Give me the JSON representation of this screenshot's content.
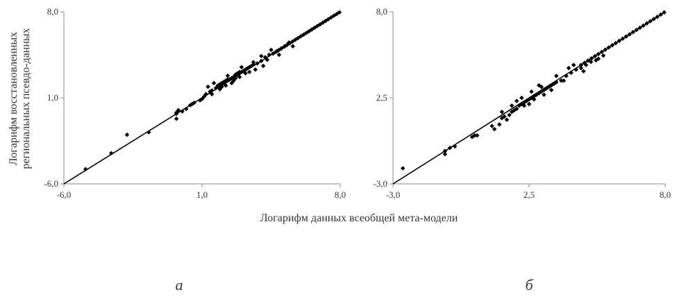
{
  "y_label_lines": [
    "Логарифм восстановленных",
    "региональных псевдо-данных"
  ],
  "x_label": "Логарифм данных всеобщей мета-модели",
  "chart_data": [
    {
      "panel": "а",
      "type": "scatter",
      "xlim": [
        -6.0,
        8.0
      ],
      "ylim": [
        -6.0,
        8.0
      ],
      "x_ticks": [
        "-6,0",
        "1,0",
        "8,0"
      ],
      "y_ticks": [
        "-6,0",
        "1,0",
        "8,0"
      ],
      "x_tick_values": [
        -6.0,
        1.0,
        8.0
      ],
      "y_tick_values": [
        -6.0,
        1.0,
        8.0
      ],
      "grid": false,
      "reference_line": [
        [
          -6.0,
          -6.0
        ],
        [
          8.0,
          8.0
        ]
      ],
      "points": [
        [
          -4.9,
          -4.8
        ],
        [
          -3.6,
          -3.5
        ],
        [
          -2.8,
          -2.0
        ],
        [
          -1.7,
          -1.8
        ],
        [
          -0.3,
          -0.3
        ],
        [
          -0.3,
          -0.2
        ],
        [
          -0.2,
          0.0
        ],
        [
          -0.3,
          -0.7
        ],
        [
          0.0,
          -0.1
        ],
        [
          0.2,
          0.1
        ],
        [
          0.4,
          0.4
        ],
        [
          0.5,
          0.5
        ],
        [
          0.6,
          0.6
        ],
        [
          0.9,
          0.8
        ],
        [
          1.0,
          0.9
        ],
        [
          1.1,
          1.1
        ],
        [
          1.2,
          1.3
        ],
        [
          1.4,
          1.5
        ],
        [
          1.5,
          1.6
        ],
        [
          1.7,
          1.8
        ],
        [
          1.8,
          2.0
        ],
        [
          1.9,
          2.1
        ],
        [
          2.0,
          2.2
        ],
        [
          2.1,
          2.3
        ],
        [
          2.2,
          2.4
        ],
        [
          2.3,
          2.5
        ],
        [
          2.4,
          2.5
        ],
        [
          2.5,
          2.6
        ],
        [
          2.6,
          2.7
        ],
        [
          2.7,
          2.9
        ],
        [
          2.8,
          3.0
        ],
        [
          2.9,
          3.1
        ],
        [
          3.0,
          3.1
        ],
        [
          3.1,
          3.2
        ],
        [
          3.2,
          3.3
        ],
        [
          3.3,
          3.4
        ],
        [
          3.4,
          3.5
        ],
        [
          3.5,
          3.6
        ],
        [
          3.6,
          3.7
        ],
        [
          3.8,
          3.8
        ],
        [
          4.0,
          4.0
        ],
        [
          4.2,
          4.3
        ],
        [
          4.4,
          4.5
        ],
        [
          4.6,
          4.6
        ],
        [
          4.8,
          4.8
        ],
        [
          5.0,
          5.0
        ],
        [
          5.2,
          5.2
        ],
        [
          5.4,
          5.5
        ],
        [
          1.6,
          2.2
        ],
        [
          1.9,
          1.7
        ],
        [
          2.2,
          2.0
        ],
        [
          2.5,
          2.2
        ],
        [
          2.7,
          2.6
        ],
        [
          3.0,
          3.5
        ],
        [
          3.4,
          3.1
        ],
        [
          3.7,
          3.3
        ],
        [
          4.1,
          3.6
        ],
        [
          4.5,
          4.9
        ],
        [
          4.9,
          4.5
        ],
        [
          5.6,
          5.2
        ],
        [
          1.3,
          1.9
        ],
        [
          1.5,
          1.3
        ],
        [
          2.0,
          1.9
        ],
        [
          2.3,
          2.8
        ],
        [
          2.6,
          2.4
        ],
        [
          2.9,
          2.7
        ],
        [
          3.2,
          3.0
        ],
        [
          3.6,
          3.9
        ],
        [
          4.0,
          4.4
        ],
        [
          4.3,
          4.1
        ]
      ]
    },
    {
      "panel": "б",
      "type": "scatter",
      "xlim": [
        -3.0,
        8.0
      ],
      "ylim": [
        -3.0,
        8.0
      ],
      "x_ticks": [
        "-3,0",
        "2,5",
        "8,0"
      ],
      "y_ticks": [
        "-3,0",
        "2,5",
        "8,0"
      ],
      "x_tick_values": [
        -3.0,
        2.5,
        8.0
      ],
      "y_tick_values": [
        -3.0,
        2.5,
        8.0
      ],
      "grid": false,
      "reference_line": [
        [
          -3.0,
          -3.0
        ],
        [
          8.0,
          8.0
        ]
      ],
      "points": [
        [
          -2.6,
          -2.0
        ],
        [
          -0.9,
          -0.9
        ],
        [
          -0.9,
          -1.1
        ],
        [
          -0.7,
          -0.7
        ],
        [
          -0.5,
          -0.6
        ],
        [
          0.2,
          0.0
        ],
        [
          0.3,
          0.1
        ],
        [
          0.4,
          0.1
        ],
        [
          1.0,
          0.7
        ],
        [
          1.1,
          0.5
        ],
        [
          1.3,
          0.8
        ],
        [
          1.4,
          1.2
        ],
        [
          1.5,
          1.3
        ],
        [
          1.6,
          1.1
        ],
        [
          1.7,
          1.4
        ],
        [
          1.8,
          1.6
        ],
        [
          1.9,
          1.7
        ],
        [
          2.0,
          1.8
        ],
        [
          2.1,
          2.0
        ],
        [
          2.2,
          2.1
        ],
        [
          2.3,
          2.2
        ],
        [
          2.4,
          2.3
        ],
        [
          2.5,
          2.4
        ],
        [
          2.6,
          2.5
        ],
        [
          2.7,
          2.6
        ],
        [
          2.8,
          2.7
        ],
        [
          2.9,
          2.8
        ],
        [
          3.0,
          2.9
        ],
        [
          3.1,
          3.0
        ],
        [
          3.2,
          3.1
        ],
        [
          3.3,
          3.2
        ],
        [
          3.4,
          3.3
        ],
        [
          3.5,
          3.4
        ],
        [
          3.6,
          3.5
        ],
        [
          3.8,
          3.6
        ],
        [
          4.0,
          3.9
        ],
        [
          4.2,
          4.1
        ],
        [
          4.4,
          4.3
        ],
        [
          4.6,
          4.4
        ],
        [
          4.8,
          4.6
        ],
        [
          5.0,
          4.8
        ],
        [
          5.2,
          4.9
        ],
        [
          5.5,
          5.2
        ],
        [
          1.4,
          1.6
        ],
        [
          1.8,
          2.0
        ],
        [
          2.2,
          2.5
        ],
        [
          2.6,
          2.9
        ],
        [
          3.0,
          3.2
        ],
        [
          3.4,
          3.0
        ],
        [
          3.9,
          3.6
        ],
        [
          4.1,
          4.4
        ],
        [
          4.7,
          4.2
        ],
        [
          5.3,
          5.0
        ],
        [
          2.3,
          2.0
        ],
        [
          2.7,
          2.4
        ],
        [
          3.1,
          2.7
        ],
        [
          3.6,
          3.9
        ],
        [
          4.3,
          4.6
        ],
        [
          2.0,
          2.3
        ],
        [
          2.5,
          2.1
        ],
        [
          2.9,
          3.3
        ]
      ]
    }
  ]
}
